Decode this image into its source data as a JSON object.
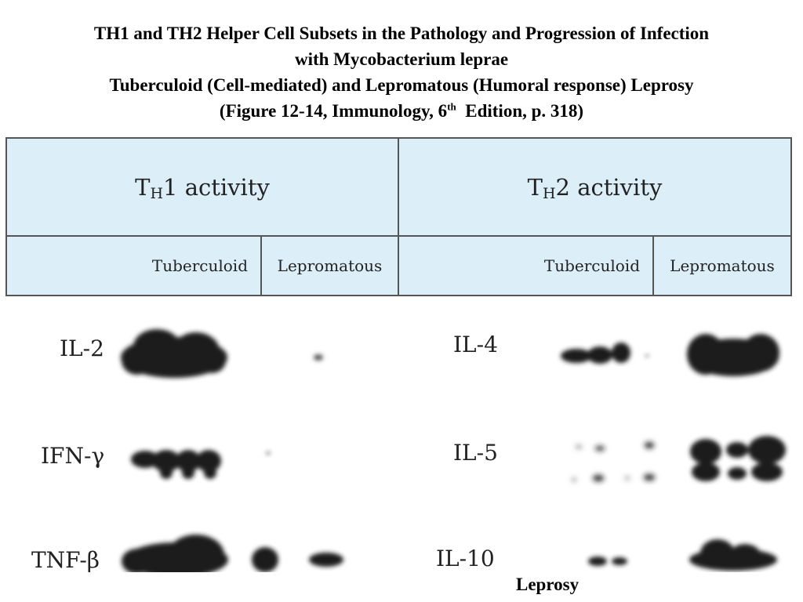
{
  "title": {
    "line1": "TH1 and TH2 Helper Cell Subsets in the Pathology and Progression of Infection",
    "line2": "with Mycobacterium leprae",
    "line3": "Tuberculoid (Cell-mediated) and Lepromatous (Humoral response) Leprosy",
    "line4_pre": "(Figure 12-14, Immunology, 6",
    "line4_sup": "th",
    "line4_post": "  Edition, p. 318)"
  },
  "table": {
    "th1": {
      "main": "T",
      "sub": "H",
      "rest": "1 activity"
    },
    "th2": {
      "main": "T",
      "sub": "H",
      "rest": "2 activity"
    },
    "subcolumns": [
      "Tuberculoid",
      "Lepromatous",
      "Tuberculoid",
      "Lepromatous"
    ]
  },
  "blots": {
    "left_labels": [
      "IL-2",
      "IFN-γ",
      "TNF-β"
    ],
    "right_labels": [
      "IL-4",
      "IL-5",
      "IL-10"
    ]
  },
  "footer": "Leprosy"
}
